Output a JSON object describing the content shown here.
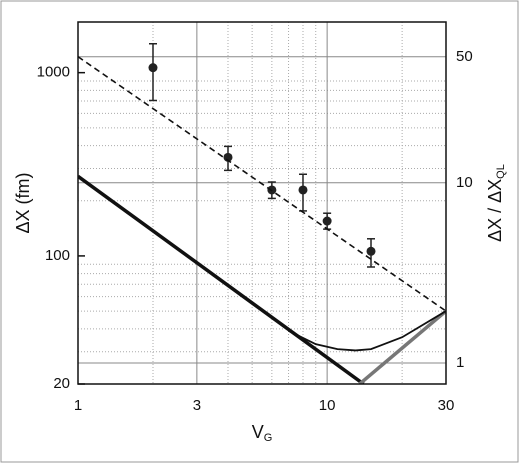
{
  "chart_data": {
    "type": "line",
    "x_label": "V",
    "x_label_sub": "G",
    "y_label": "ΔX  (fm)",
    "y2_label": "ΔX / ΔX",
    "y2_label_sub": "QL",
    "log_x": true,
    "log_y": true,
    "log_y2": true,
    "xlim": [
      1,
      30
    ],
    "xticks": [
      1,
      3,
      10,
      30
    ],
    "ylim": [
      20,
      1890
    ],
    "yticks": [
      20,
      100,
      1000
    ],
    "y2lim": [
      0.765,
      78
    ],
    "y2ticks": [
      1,
      10,
      50
    ],
    "x_minor_grid": [
      2,
      4,
      5,
      6,
      7,
      8,
      9,
      20
    ],
    "y_minor_grid": [
      30,
      40,
      50,
      60,
      70,
      80,
      90,
      200,
      300,
      400,
      500,
      600,
      700,
      800,
      900
    ],
    "series": [
      {
        "style": "points",
        "color": "#222222",
        "x": [
          2,
          4,
          6,
          8,
          10,
          15
        ],
        "values": [
          1065,
          345,
          229,
          229,
          155,
          106
        ],
        "y_high": [
          1438,
          396,
          253,
          279,
          171,
          124
        ],
        "y_low": [
          705,
          293,
          206,
          176,
          140,
          87
        ]
      },
      {
        "style": "dashed",
        "color": "#111111",
        "x": [
          1,
          30
        ],
        "values": [
          1222,
          50
        ]
      },
      {
        "style": "thick",
        "color": "#111111",
        "x": [
          1,
          14
        ],
        "values": [
          272,
          20
        ]
      },
      {
        "style": "thick",
        "color": "#777777",
        "x": [
          13.5,
          30
        ],
        "values": [
          20,
          50
        ]
      },
      {
        "style": "thin",
        "color": "#111111",
        "x": [
          7,
          9,
          11,
          13,
          15,
          20,
          30
        ],
        "values": [
          39,
          33,
          31,
          30.5,
          31,
          36,
          50
        ]
      }
    ]
  }
}
